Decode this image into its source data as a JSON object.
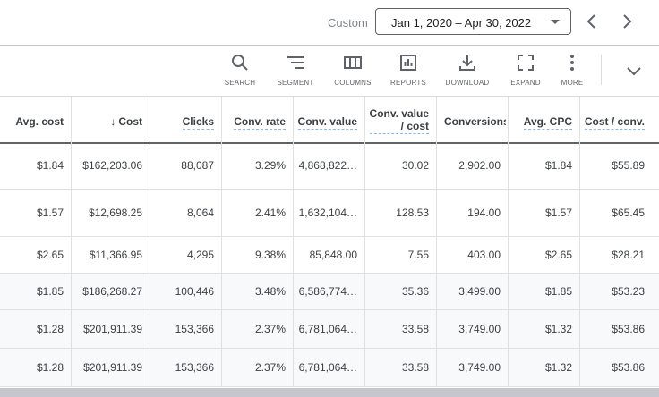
{
  "header": {
    "range_label": "Custom",
    "date_range": "Jan 1, 2020 – Apr 30, 2022"
  },
  "toolbar": [
    {
      "label": "SEARCH",
      "icon": "search-icon"
    },
    {
      "label": "SEGMENT",
      "icon": "segment-icon"
    },
    {
      "label": "COLUMNS",
      "icon": "columns-icon"
    },
    {
      "label": "REPORTS",
      "icon": "reports-icon"
    },
    {
      "label": "DOWNLOAD",
      "icon": "download-icon"
    },
    {
      "label": "EXPAND",
      "icon": "expand-icon"
    },
    {
      "label": "MORE",
      "icon": "more-vert-icon"
    }
  ],
  "table": {
    "sorted_column": "Cost",
    "columns": [
      "Avg. cost",
      "Cost",
      "Clicks",
      "Conv. rate",
      "Conv. value",
      "Conv. value / cost",
      "Conversions",
      "Avg. CPC",
      "Cost / conv."
    ],
    "col2_line1": "Conv. value",
    "col2_line2": "/ cost",
    "rows": [
      [
        "$1.84",
        "$162,203.06",
        "88,087",
        "3.29%",
        "4,868,822…",
        "30.02",
        "2,902.00",
        "$1.84",
        "$55.89"
      ],
      [
        "$1.57",
        "$12,698.25",
        "8,064",
        "2.41%",
        "1,632,104…",
        "128.53",
        "194.00",
        "$1.57",
        "$65.45"
      ],
      [
        "$2.65",
        "$11,366.95",
        "4,295",
        "9.38%",
        "85,848.00",
        "7.55",
        "403.00",
        "$2.65",
        "$28.21"
      ],
      [
        "$1.85",
        "$186,268.27",
        "100,446",
        "3.48%",
        "6,586,774…",
        "35.36",
        "3,499.00",
        "$1.85",
        "$53.23"
      ],
      [
        "$1.28",
        "$201,911.39",
        "153,366",
        "2.37%",
        "6,781,064…",
        "33.58",
        "3,749.00",
        "$1.32",
        "$53.86"
      ],
      [
        "$1.28",
        "$201,911.39",
        "153,366",
        "2.37%",
        "6,781,064…",
        "33.58",
        "3,749.00",
        "$1.32",
        "$53.86"
      ]
    ]
  }
}
